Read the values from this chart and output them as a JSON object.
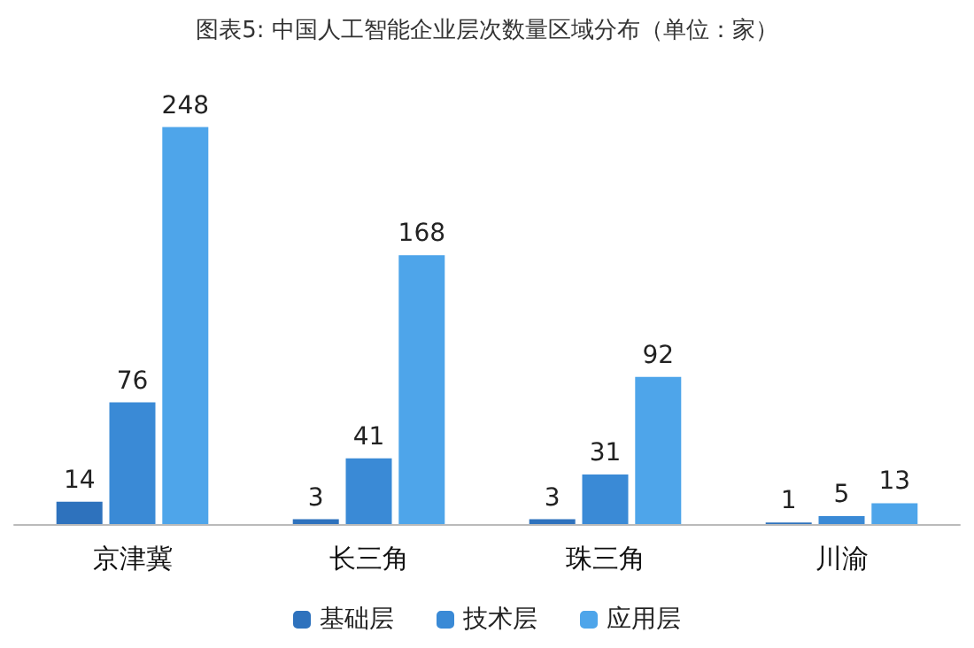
{
  "chart_data": {
    "type": "bar",
    "title": "图表5: 中国人工智能企业层次数量区域分布（单位：家）",
    "categories": [
      "京津冀",
      "长三角",
      "珠三角",
      "川渝"
    ],
    "series": [
      {
        "name": "基础层",
        "color": "#2e72bd",
        "values": [
          14,
          3,
          3,
          1
        ]
      },
      {
        "name": "技术层",
        "color": "#3a8ad6",
        "values": [
          76,
          41,
          31,
          5
        ]
      },
      {
        "name": "应用层",
        "color": "#4ea5ea",
        "values": [
          248,
          168,
          92,
          13
        ]
      }
    ],
    "data_labels": true,
    "legend": "bottom"
  }
}
